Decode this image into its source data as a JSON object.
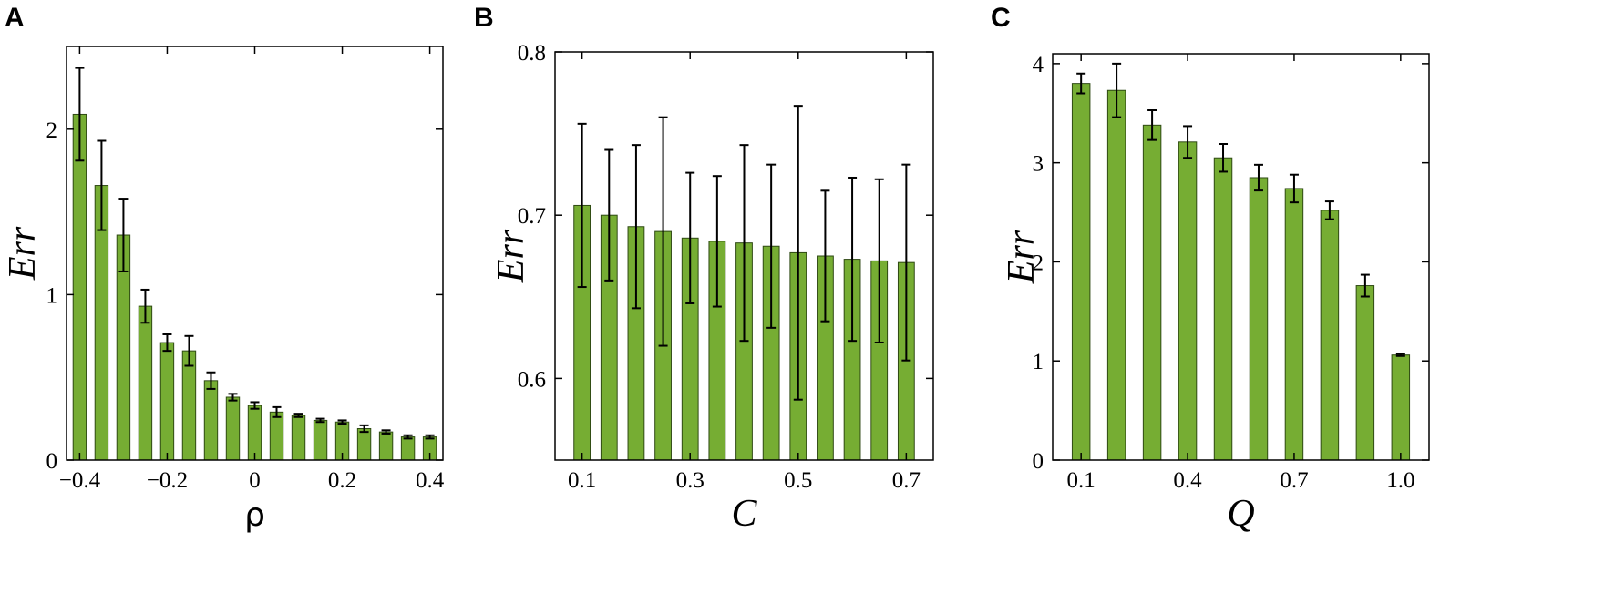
{
  "chart_data": [
    {
      "panel_label": "A",
      "type": "bar",
      "xlabel": "ρ",
      "ylabel": "Err",
      "xlim": [
        -0.43,
        0.43
      ],
      "ylim": [
        0,
        2.5
      ],
      "xticks": [
        -0.4,
        -0.2,
        0,
        0.2,
        0.4
      ],
      "xtick_labels": [
        "−0.4",
        "−0.2",
        "0",
        "0.2",
        "0.4"
      ],
      "yticks": [
        0,
        1,
        2
      ],
      "ytick_labels": [
        "0",
        "1",
        "2"
      ],
      "x": [
        -0.4,
        -0.35,
        -0.3,
        -0.25,
        -0.2,
        -0.15,
        -0.1,
        -0.05,
        0,
        0.05,
        0.1,
        0.15,
        0.2,
        0.25,
        0.3,
        0.35,
        0.4
      ],
      "values": [
        2.09,
        1.66,
        1.36,
        0.93,
        0.71,
        0.66,
        0.48,
        0.38,
        0.33,
        0.29,
        0.27,
        0.24,
        0.23,
        0.19,
        0.17,
        0.14,
        0.14
      ],
      "errors": [
        0.28,
        0.27,
        0.22,
        0.1,
        0.05,
        0.09,
        0.05,
        0.02,
        0.02,
        0.03,
        0.01,
        0.01,
        0.01,
        0.02,
        0.01,
        0.01,
        0.01
      ],
      "bar_width": 0.03
    },
    {
      "panel_label": "B",
      "type": "bar",
      "xlabel": "C",
      "ylabel": "Err",
      "xlim": [
        0.05,
        0.75
      ],
      "ylim": [
        0.55,
        0.8
      ],
      "xticks": [
        0.1,
        0.3,
        0.5,
        0.7
      ],
      "xtick_labels": [
        "0.1",
        "0.3",
        "0.5",
        "0.7"
      ],
      "yticks": [
        0.6,
        0.7,
        0.8
      ],
      "ytick_labels": [
        "0.6",
        "0.7",
        "0.8"
      ],
      "x": [
        0.1,
        0.15,
        0.2,
        0.25,
        0.3,
        0.35,
        0.4,
        0.45,
        0.5,
        0.55,
        0.6,
        0.65,
        0.7
      ],
      "values": [
        0.706,
        0.7,
        0.693,
        0.69,
        0.686,
        0.684,
        0.683,
        0.681,
        0.677,
        0.675,
        0.673,
        0.672,
        0.671
      ],
      "errors": [
        0.05,
        0.04,
        0.05,
        0.07,
        0.04,
        0.04,
        0.06,
        0.05,
        0.09,
        0.04,
        0.05,
        0.05,
        0.06
      ],
      "bar_width": 0.03
    },
    {
      "panel_label": "C",
      "type": "bar",
      "xlabel": "Q",
      "ylabel": "Err",
      "xlim": [
        0.02,
        1.08
      ],
      "ylim": [
        0,
        4.1
      ],
      "xticks": [
        0.1,
        0.4,
        0.7,
        1.0
      ],
      "xtick_labels": [
        "0.1",
        "0.4",
        "0.7",
        "1.0"
      ],
      "yticks": [
        0,
        1,
        2,
        3,
        4
      ],
      "ytick_labels": [
        "0",
        "1",
        "2",
        "3",
        "4"
      ],
      "x": [
        0.1,
        0.2,
        0.3,
        0.4,
        0.5,
        0.6,
        0.7,
        0.8,
        0.9,
        1.0
      ],
      "values": [
        3.8,
        3.73,
        3.38,
        3.21,
        3.05,
        2.85,
        2.74,
        2.52,
        1.76,
        1.06
      ],
      "errors": [
        0.1,
        0.27,
        0.15,
        0.16,
        0.14,
        0.13,
        0.14,
        0.09,
        0.11,
        0.01
      ],
      "bar_width": 0.05
    }
  ],
  "style": {
    "bar_fill": "#76ad33",
    "bar_stroke": "#2f4a14",
    "axis_color": "#000000"
  }
}
